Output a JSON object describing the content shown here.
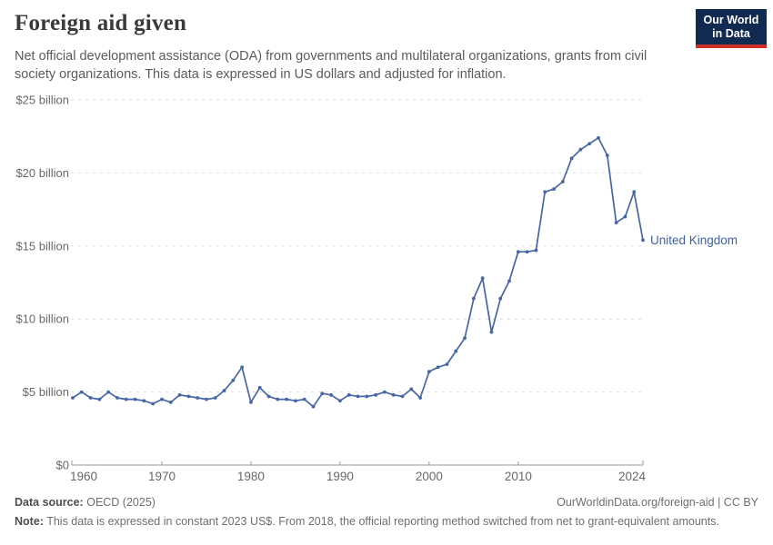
{
  "header": {
    "title": "Foreign aid given",
    "subtitle": "Net official development assistance (ODA) from governments and multilateral organizations, grants from civil society organizations. This data is expressed in US dollars and adjusted for inflation.",
    "logo_line1": "Our World",
    "logo_line2": "in Data"
  },
  "chart_data": {
    "type": "line",
    "title": "Foreign aid given",
    "xlabel": "",
    "ylabel": "",
    "xlim": [
      1960,
      2024
    ],
    "ylim": [
      0,
      25
    ],
    "grid": "horizontal-dashed",
    "legend_position": "end-of-line-label",
    "yticks": [
      {
        "value": 0,
        "label": "$0"
      },
      {
        "value": 5,
        "label": "$5 billion"
      },
      {
        "value": 10,
        "label": "$10 billion"
      },
      {
        "value": 15,
        "label": "$15 billion"
      },
      {
        "value": 20,
        "label": "$20 billion"
      },
      {
        "value": 25,
        "label": "$25 billion"
      }
    ],
    "xticks": [
      {
        "value": 1960,
        "label": "1960",
        "anchor": "start"
      },
      {
        "value": 1970,
        "label": "1970",
        "anchor": "middle"
      },
      {
        "value": 1980,
        "label": "1980",
        "anchor": "middle"
      },
      {
        "value": 1990,
        "label": "1990",
        "anchor": "middle"
      },
      {
        "value": 2000,
        "label": "2000",
        "anchor": "middle"
      },
      {
        "value": 2010,
        "label": "2010",
        "anchor": "middle"
      },
      {
        "value": 2024,
        "label": "2024",
        "anchor": "end"
      }
    ],
    "x": [
      1960,
      1961,
      1962,
      1963,
      1964,
      1965,
      1966,
      1967,
      1968,
      1969,
      1970,
      1971,
      1972,
      1973,
      1974,
      1975,
      1976,
      1977,
      1978,
      1979,
      1980,
      1981,
      1982,
      1983,
      1984,
      1985,
      1986,
      1987,
      1988,
      1989,
      1990,
      1991,
      1992,
      1993,
      1994,
      1995,
      1996,
      1997,
      1998,
      1999,
      2000,
      2001,
      2002,
      2003,
      2004,
      2005,
      2006,
      2007,
      2008,
      2009,
      2010,
      2011,
      2012,
      2013,
      2014,
      2015,
      2016,
      2017,
      2018,
      2019,
      2020,
      2021,
      2022,
      2023,
      2024
    ],
    "series": [
      {
        "name": "United Kingdom",
        "unit": "billion US$ (constant 2023)",
        "color": "#4666a5",
        "values": [
          4.6,
          5.0,
          4.6,
          4.5,
          5.0,
          4.6,
          4.5,
          4.5,
          4.4,
          4.2,
          4.5,
          4.3,
          4.8,
          4.7,
          4.6,
          4.5,
          4.6,
          5.1,
          5.8,
          6.7,
          4.3,
          5.3,
          4.7,
          4.5,
          4.5,
          4.4,
          4.5,
          4.0,
          4.9,
          4.8,
          4.4,
          4.8,
          4.7,
          4.7,
          4.8,
          5.0,
          4.8,
          4.7,
          5.2,
          4.6,
          6.4,
          6.7,
          6.9,
          7.8,
          8.7,
          11.4,
          12.8,
          9.1,
          11.4,
          12.6,
          14.6,
          14.6,
          14.7,
          18.7,
          18.9,
          19.4,
          21.0,
          21.6,
          22.0,
          22.4,
          21.2,
          16.6,
          17.0,
          18.7,
          15.4
        ]
      }
    ]
  },
  "footer": {
    "datasource_label": "Data source:",
    "datasource_value": "OECD (2025)",
    "link": "OurWorldinData.org/foreign-aid | CC BY",
    "note_label": "Note:",
    "note_value": "This data is expressed in constant 2023 US$. From 2018, the official reporting method switched from net to grant-equivalent amounts."
  },
  "colors": {
    "line": "#4666a5",
    "series_label": "#4061a0",
    "gridline": "#dadada",
    "axis": "#999999",
    "tick_text": "#686868",
    "logo_bg": "#102a52",
    "logo_accent": "#cf2e27"
  }
}
